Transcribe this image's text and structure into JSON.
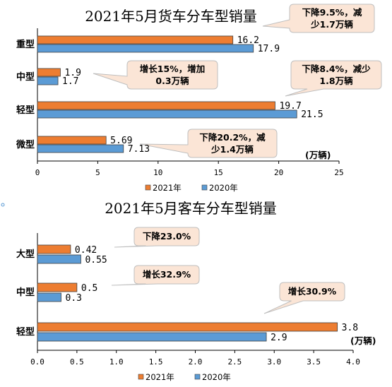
{
  "colors": {
    "series_2021": "#ED7D31",
    "series_2020": "#5B9BD5",
    "callout_fill": "#FBE5D6",
    "callout_stroke": "#BFBFBF"
  },
  "chart_data": [
    {
      "type": "bar",
      "orientation": "horizontal",
      "title": "2021年5月货车分车型销量",
      "unit_label": "(万辆)",
      "categories": [
        "重型",
        "中型",
        "轻型",
        "微型"
      ],
      "series": [
        {
          "name": "2021年",
          "values": [
            16.2,
            1.9,
            19.7,
            5.69
          ],
          "labels": [
            "16.2",
            "1.9",
            "19.7",
            "5.69"
          ]
        },
        {
          "name": "2020年",
          "values": [
            17.9,
            1.7,
            21.5,
            7.13
          ],
          "labels": [
            "17.9",
            "1.7",
            "21.5",
            "7.13"
          ]
        }
      ],
      "xlim": [
        0,
        25
      ],
      "xticks": [
        "0",
        "5",
        "10",
        "15",
        "20",
        "25"
      ],
      "xtick_values": [
        0,
        5,
        10,
        15,
        20,
        25
      ],
      "legend_position": "bottom",
      "grid": false,
      "annotations": [
        {
          "category": "重型",
          "lines": [
            "下降9.5%，减",
            "少1.7万辆"
          ]
        },
        {
          "category": "中型",
          "lines": [
            "增长15%，增加",
            "0.3万辆"
          ]
        },
        {
          "category": "轻型",
          "lines": [
            "下降8.4%，减少",
            "1.8万辆"
          ]
        },
        {
          "category": "微型",
          "lines": [
            "下降20.2%，减",
            "少1.4万辆"
          ]
        }
      ]
    },
    {
      "type": "bar",
      "orientation": "horizontal",
      "title": "2021年5月客车分车型销量",
      "unit_label": "(万辆)",
      "categories": [
        "大型",
        "中型",
        "轻型"
      ],
      "series": [
        {
          "name": "2021年",
          "values": [
            0.42,
            0.5,
            3.8
          ],
          "labels": [
            "0.42",
            "0.5",
            "3.8"
          ]
        },
        {
          "name": "2020年",
          "values": [
            0.55,
            0.3,
            2.9
          ],
          "labels": [
            "0.55",
            "0.3",
            "2.9"
          ]
        }
      ],
      "xlim": [
        0,
        4.0
      ],
      "xticks": [
        "0.0",
        "0.5",
        "1.0",
        "1.5",
        "2.0",
        "2.5",
        "3.0",
        "3.5",
        "4.0"
      ],
      "xtick_values": [
        0,
        0.5,
        1.0,
        1.5,
        2.0,
        2.5,
        3.0,
        3.5,
        4.0
      ],
      "legend_position": "bottom",
      "grid": false,
      "annotations": [
        {
          "category": "大型",
          "lines": [
            "下降23.0%"
          ]
        },
        {
          "category": "中型",
          "lines": [
            "增长32.9%"
          ]
        },
        {
          "category": "轻型",
          "lines": [
            "增长30.9%"
          ]
        }
      ]
    }
  ]
}
